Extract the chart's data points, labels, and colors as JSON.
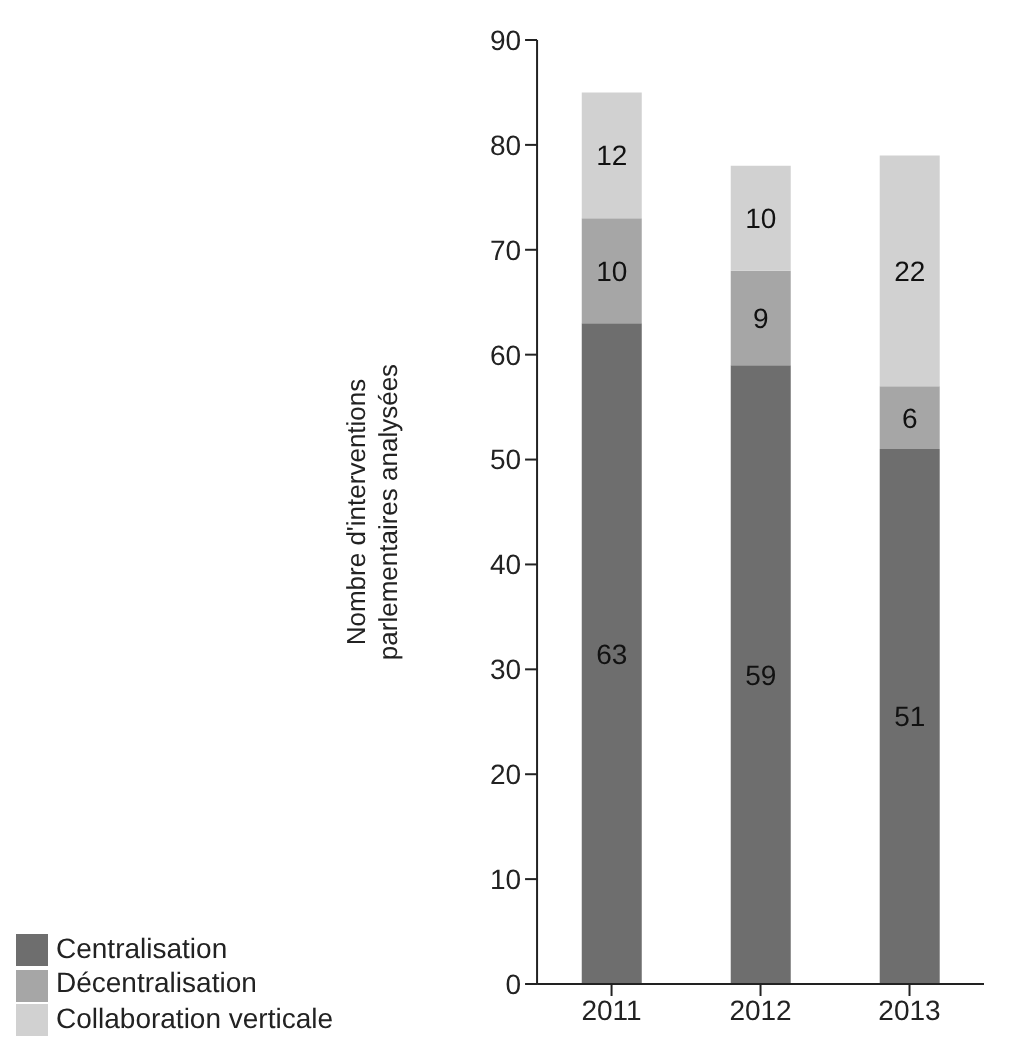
{
  "chart_data": {
    "type": "bar",
    "stacked": true,
    "categories": [
      "2011",
      "2012",
      "2013"
    ],
    "series": [
      {
        "name": "Centralisation",
        "color": "#6e6e6e",
        "values": [
          63,
          59,
          51
        ]
      },
      {
        "name": "Décentralisation",
        "color": "#a6a6a6",
        "values": [
          10,
          9,
          6
        ]
      },
      {
        "name": "Collaboration verticale",
        "color": "#d1d1d1",
        "values": [
          12,
          10,
          22
        ]
      }
    ],
    "ylabel": "Nombre d'interventions parlementaires analysées",
    "ylim": [
      0,
      90
    ],
    "yticks": [
      0,
      10,
      20,
      30,
      40,
      50,
      60,
      70,
      80,
      90
    ],
    "data_labels": true,
    "legend": "bottom left",
    "grid": false
  }
}
